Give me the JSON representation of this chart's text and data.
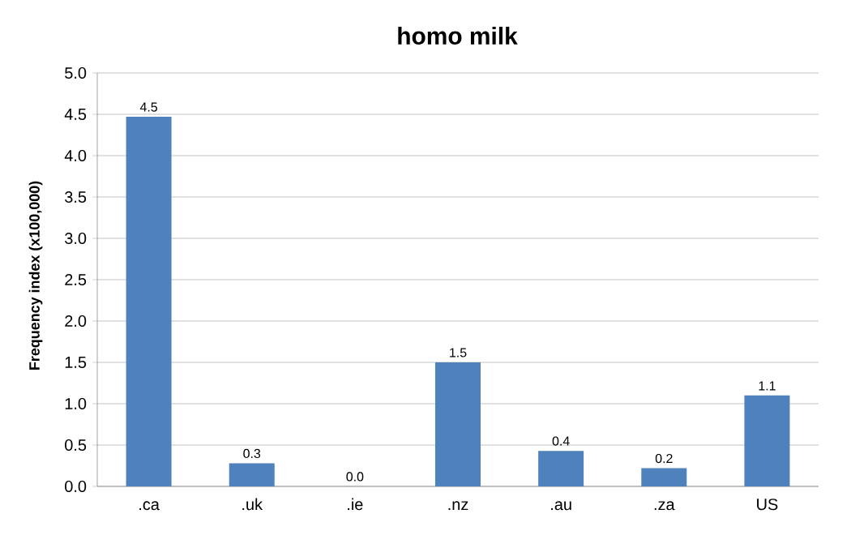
{
  "chart_data": {
    "type": "bar",
    "title": "homo milk",
    "ylabel": "Frequency index (x100,000)",
    "categories": [
      ".ca",
      ".uk",
      ".ie",
      ".nz",
      ".au",
      ".za",
      "US"
    ],
    "values": [
      4.47,
      0.28,
      0.0,
      1.5,
      0.43,
      0.22,
      1.1
    ],
    "value_labels": [
      "4.5",
      "0.3",
      "0.0",
      "1.5",
      "0.4",
      "0.2",
      "1.1"
    ],
    "color": "#4f81bd",
    "ylim": [
      0,
      5
    ],
    "yticks": [
      {
        "value": 0,
        "label": "0.0"
      },
      {
        "value": 0.5,
        "label": "0.5"
      },
      {
        "value": 1,
        "label": "1.0"
      },
      {
        "value": 1.5,
        "label": "1.5"
      },
      {
        "value": 2,
        "label": "2.0"
      },
      {
        "value": 2.5,
        "label": "2.5"
      },
      {
        "value": 3,
        "label": "3.0"
      },
      {
        "value": 3.5,
        "label": "3.5"
      },
      {
        "value": 4,
        "label": "4.0"
      },
      {
        "value": 4.5,
        "label": "4.5"
      },
      {
        "value": 5,
        "label": "5.0"
      }
    ],
    "grid": "y"
  }
}
